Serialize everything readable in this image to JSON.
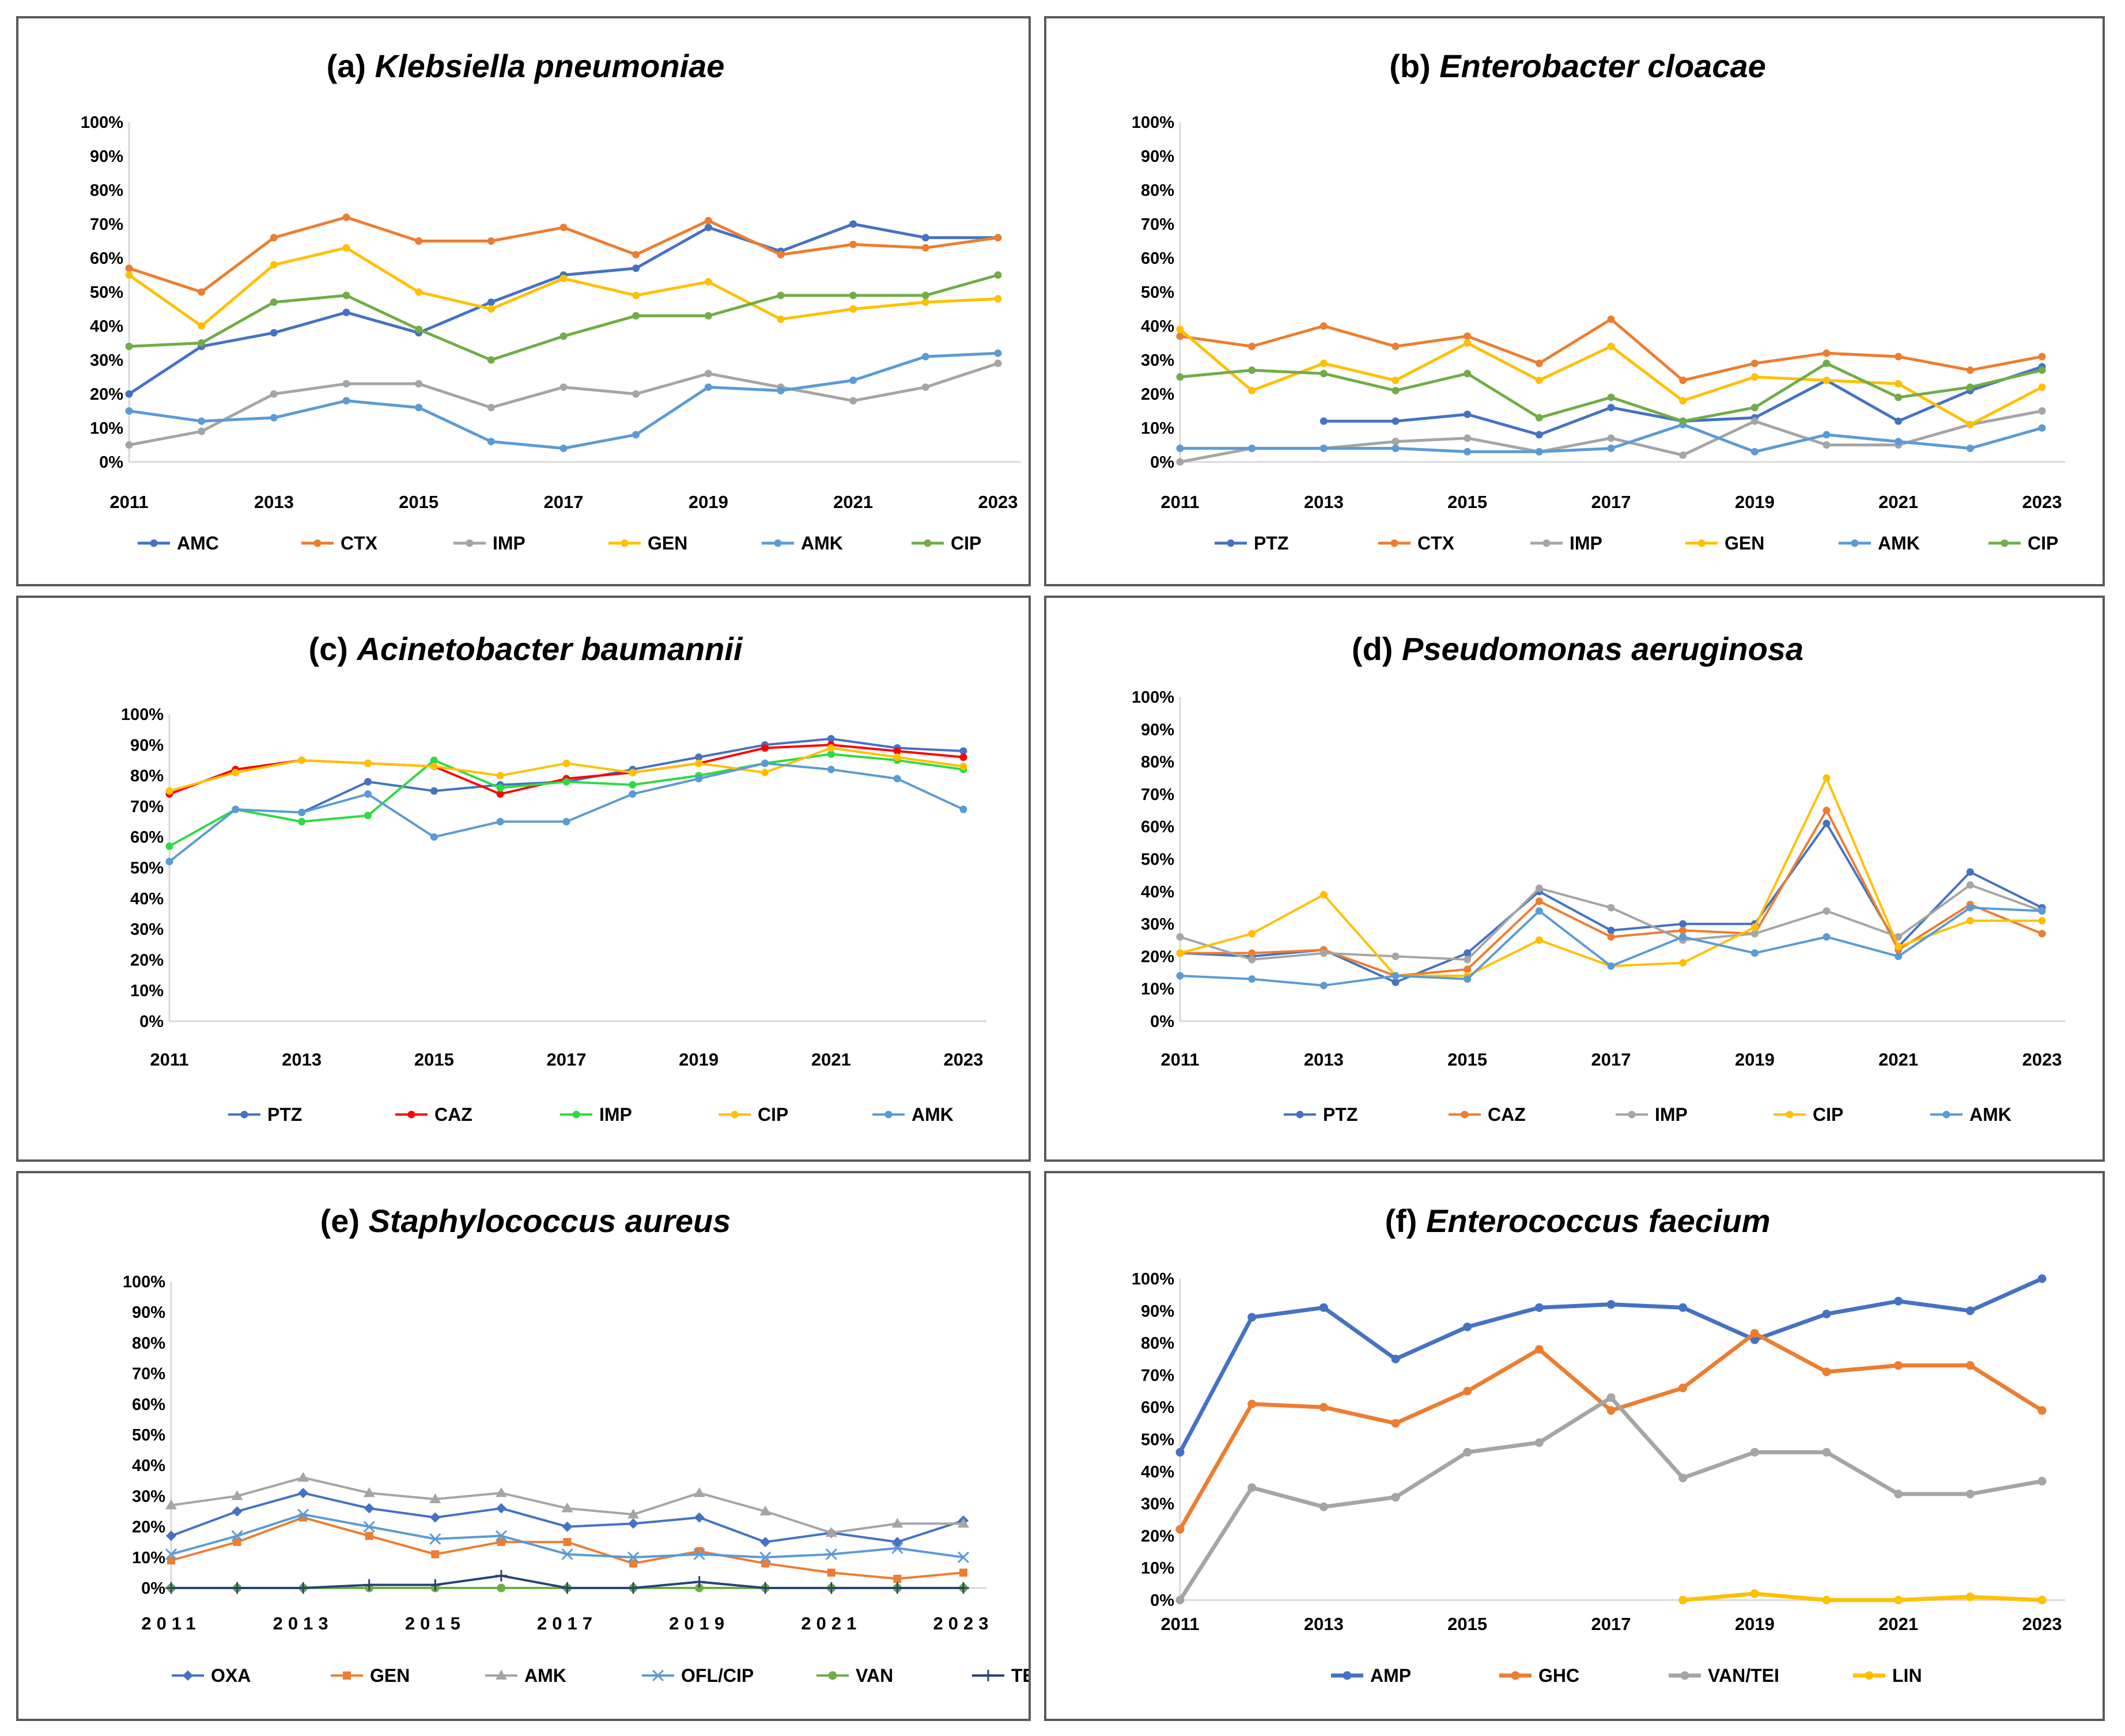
{
  "colors": {
    "blue": "#4472C4",
    "orange": "#ED7D31",
    "gray": "#A5A5A5",
    "gold": "#FFC000",
    "lightblue": "#5B9BD5",
    "green": "#70AD47",
    "red": "#FF0000",
    "brightgreen": "#2CDB41",
    "navy": "#264478",
    "axis": "#D9D9D9",
    "border": "#595959"
  },
  "chart_data": [
    {
      "type": "line",
      "title_prefix": "(a) ",
      "title_species": "Klebsiella pneumoniae",
      "x": [
        2011,
        2012,
        2013,
        2014,
        2015,
        2016,
        2017,
        2018,
        2019,
        2020,
        2021,
        2022,
        2023
      ],
      "x_tick_labels": [
        "2011",
        "2013",
        "2015",
        "2017",
        "2019",
        "2021",
        "2023"
      ],
      "y_tick_labels": [
        "0%",
        "10%",
        "20%",
        "30%",
        "40%",
        "50%",
        "60%",
        "70%",
        "80%",
        "90%",
        "100%"
      ],
      "ylim": [
        0,
        100
      ],
      "series": [
        {
          "name": "AMC",
          "color": "#4472C4",
          "marker": "circle",
          "values": [
            20,
            34,
            38,
            44,
            38,
            47,
            55,
            57,
            69,
            62,
            70,
            66,
            66
          ]
        },
        {
          "name": "CTX",
          "color": "#ED7D31",
          "marker": "circle",
          "values": [
            57,
            50,
            66,
            72,
            65,
            65,
            69,
            61,
            71,
            61,
            64,
            63,
            66
          ]
        },
        {
          "name": "IMP",
          "color": "#A5A5A5",
          "marker": "circle",
          "values": [
            5,
            9,
            20,
            23,
            23,
            16,
            22,
            20,
            26,
            22,
            18,
            22,
            29
          ]
        },
        {
          "name": "GEN",
          "color": "#FFC000",
          "marker": "circle",
          "values": [
            55,
            40,
            58,
            63,
            50,
            45,
            54,
            49,
            53,
            42,
            45,
            47,
            48
          ]
        },
        {
          "name": "AMK",
          "color": "#5B9BD5",
          "marker": "circle",
          "values": [
            15,
            12,
            13,
            18,
            16,
            6,
            4,
            8,
            22,
            21,
            24,
            31,
            32
          ]
        },
        {
          "name": "CIP",
          "color": "#70AD47",
          "marker": "circle",
          "values": [
            34,
            35,
            47,
            49,
            39,
            30,
            37,
            43,
            43,
            49,
            49,
            49,
            55
          ]
        }
      ]
    },
    {
      "type": "line",
      "title_prefix": "(b) ",
      "title_species": "Enterobacter cloacae",
      "x": [
        2011,
        2012,
        2013,
        2014,
        2015,
        2016,
        2017,
        2018,
        2019,
        2020,
        2021,
        2022,
        2023
      ],
      "x_tick_labels": [
        "2011",
        "2013",
        "2015",
        "2017",
        "2019",
        "2021",
        "2023"
      ],
      "y_tick_labels": [
        "0%",
        "10%",
        "20%",
        "30%",
        "40%",
        "50%",
        "60%",
        "70%",
        "80%",
        "90%",
        "100%"
      ],
      "ylim": [
        0,
        100
      ],
      "series": [
        {
          "name": "PTZ",
          "color": "#4472C4",
          "marker": "circle",
          "values": [
            null,
            null,
            12,
            12,
            14,
            8,
            16,
            12,
            13,
            24,
            12,
            21,
            28
          ]
        },
        {
          "name": "CTX",
          "color": "#ED7D31",
          "marker": "circle",
          "values": [
            37,
            34,
            40,
            34,
            37,
            29,
            42,
            24,
            29,
            32,
            31,
            27,
            31
          ]
        },
        {
          "name": "IMP",
          "color": "#A5A5A5",
          "marker": "circle",
          "values": [
            0,
            4,
            4,
            6,
            7,
            3,
            7,
            2,
            12,
            5,
            5,
            11,
            15
          ]
        },
        {
          "name": "GEN",
          "color": "#FFC000",
          "marker": "circle",
          "values": [
            39,
            21,
            29,
            24,
            35,
            24,
            34,
            18,
            25,
            24,
            23,
            11,
            22
          ]
        },
        {
          "name": "AMK",
          "color": "#5B9BD5",
          "marker": "circle",
          "values": [
            4,
            4,
            4,
            4,
            3,
            3,
            4,
            11,
            3,
            8,
            6,
            4,
            10
          ]
        },
        {
          "name": "CIP",
          "color": "#70AD47",
          "marker": "circle",
          "values": [
            25,
            27,
            26,
            21,
            26,
            13,
            19,
            12,
            16,
            29,
            19,
            22,
            27
          ]
        }
      ]
    },
    {
      "type": "line",
      "title_prefix": "(c) ",
      "title_species": "Acinetobacter baumannii",
      "x": [
        2011,
        2012,
        2013,
        2014,
        2015,
        2016,
        2017,
        2018,
        2019,
        2020,
        2021,
        2022,
        2023
      ],
      "x_tick_labels": [
        "2011",
        "2013",
        "2015",
        "2017",
        "2019",
        "2021",
        "2023"
      ],
      "y_tick_labels": [
        "0%",
        "10%",
        "20%",
        "30%",
        "40%",
        "50%",
        "60%",
        "70%",
        "80%",
        "90%",
        "100%"
      ],
      "ylim": [
        0,
        100
      ],
      "series": [
        {
          "name": "PTZ",
          "color": "#4472C4",
          "marker": "circle",
          "values": [
            null,
            null,
            68,
            78,
            75,
            77,
            78,
            82,
            86,
            90,
            92,
            89,
            88
          ]
        },
        {
          "name": "CAZ",
          "color": "#FF0000",
          "marker": "circle",
          "values": [
            74,
            82,
            85,
            84,
            83,
            74,
            79,
            81,
            84,
            89,
            90,
            88,
            86
          ]
        },
        {
          "name": "IMP",
          "color": "#2CDB41",
          "marker": "circle",
          "values": [
            57,
            69,
            65,
            67,
            85,
            76,
            78,
            77,
            80,
            84,
            87,
            85,
            82
          ]
        },
        {
          "name": "CIP",
          "color": "#FFC000",
          "marker": "circle",
          "values": [
            75,
            81,
            85,
            84,
            83,
            80,
            84,
            81,
            84,
            81,
            89,
            86,
            83
          ]
        },
        {
          "name": "AMK",
          "color": "#5B9BD5",
          "marker": "circle",
          "values": [
            52,
            69,
            68,
            74,
            60,
            65,
            65,
            74,
            79,
            84,
            82,
            79,
            69
          ]
        }
      ]
    },
    {
      "type": "line",
      "title_prefix": "(d) ",
      "title_species": "Pseudomonas aeruginosa",
      "x": [
        2011,
        2012,
        2013,
        2014,
        2015,
        2016,
        2017,
        2018,
        2019,
        2020,
        2021,
        2022,
        2023
      ],
      "x_tick_labels": [
        "2011",
        "2013",
        "2015",
        "2017",
        "2019",
        "2021",
        "2023"
      ],
      "y_tick_labels": [
        "0%",
        "10%",
        "20%",
        "30%",
        "40%",
        "50%",
        "60%",
        "70%",
        "80%",
        "90%",
        "100%"
      ],
      "ylim": [
        0,
        100
      ],
      "series": [
        {
          "name": "PTZ",
          "color": "#4472C4",
          "marker": "circle",
          "values": [
            21,
            20,
            22,
            12,
            21,
            40,
            28,
            30,
            30,
            61,
            23,
            46,
            35
          ]
        },
        {
          "name": "CAZ",
          "color": "#ED7D31",
          "marker": "circle",
          "values": [
            21,
            21,
            22,
            14,
            16,
            37,
            26,
            28,
            27,
            65,
            22,
            36,
            27
          ]
        },
        {
          "name": "IMP",
          "color": "#A5A5A5",
          "marker": "circle",
          "values": [
            26,
            19,
            21,
            20,
            19,
            41,
            35,
            25,
            27,
            34,
            26,
            42,
            34
          ]
        },
        {
          "name": "CIP",
          "color": "#FFC000",
          "marker": "circle",
          "values": [
            21,
            27,
            39,
            14,
            14,
            25,
            17,
            18,
            29,
            75,
            23,
            31,
            31
          ]
        },
        {
          "name": "AMK",
          "color": "#5B9BD5",
          "marker": "circle",
          "values": [
            14,
            13,
            11,
            14,
            13,
            34,
            17,
            26,
            21,
            26,
            20,
            35,
            34
          ]
        }
      ]
    },
    {
      "type": "line",
      "title_prefix": "(e) ",
      "title_species": "Staphylococcus aureus",
      "x": [
        2011,
        2012,
        2013,
        2014,
        2015,
        2016,
        2017,
        2018,
        2019,
        2020,
        2021,
        2022,
        2023
      ],
      "x_tick_labels": [
        "2011",
        "2013",
        "2015",
        "2017",
        "2019",
        "2021",
        "2023"
      ],
      "y_tick_labels": [
        "0%",
        "10%",
        "20%",
        "30%",
        "40%",
        "50%",
        "60%",
        "70%",
        "80%",
        "90%",
        "100%"
      ],
      "ylim": [
        0,
        100
      ],
      "series": [
        {
          "name": "OXA",
          "color": "#4472C4",
          "marker": "diamond",
          "values": [
            17,
            25,
            31,
            26,
            23,
            26,
            20,
            21,
            23,
            15,
            18,
            15,
            22
          ]
        },
        {
          "name": "GEN",
          "color": "#ED7D31",
          "marker": "square",
          "values": [
            9,
            15,
            23,
            17,
            11,
            15,
            15,
            8,
            12,
            8,
            5,
            3,
            5
          ]
        },
        {
          "name": "AMK",
          "color": "#A5A5A5",
          "marker": "triangle",
          "values": [
            27,
            30,
            36,
            31,
            29,
            31,
            26,
            24,
            31,
            25,
            18,
            21,
            21
          ]
        },
        {
          "name": "OFL/CIP",
          "color": "#5B9BD5",
          "marker": "x",
          "values": [
            11,
            17,
            24,
            20,
            16,
            17,
            11,
            10,
            11,
            10,
            11,
            13,
            10
          ]
        },
        {
          "name": "VAN",
          "color": "#70AD47",
          "marker": "circle",
          "values": [
            0,
            0,
            0,
            0,
            0,
            0,
            0,
            0,
            0,
            0,
            0,
            0,
            0
          ]
        },
        {
          "name": "TEI",
          "color": "#264478",
          "marker": "plus",
          "values": [
            0,
            0,
            0,
            1,
            1,
            4,
            0,
            0,
            2,
            0,
            0,
            0,
            0
          ]
        }
      ]
    },
    {
      "type": "line",
      "title_prefix": "(f) ",
      "title_species": "Enterococcus faecium",
      "x": [
        2011,
        2012,
        2013,
        2014,
        2015,
        2016,
        2017,
        2018,
        2019,
        2020,
        2021,
        2022,
        2023
      ],
      "x_tick_labels": [
        "2011",
        "2013",
        "2015",
        "2017",
        "2019",
        "2021",
        "2023"
      ],
      "y_tick_labels": [
        "0%",
        "10%",
        "20%",
        "30%",
        "40%",
        "50%",
        "60%",
        "70%",
        "80%",
        "90%",
        "100%"
      ],
      "ylim": [
        0,
        100
      ],
      "series": [
        {
          "name": "AMP",
          "color": "#4472C4",
          "marker": "circle",
          "values": [
            46,
            88,
            91,
            75,
            85,
            91,
            92,
            91,
            81,
            89,
            93,
            90,
            100
          ]
        },
        {
          "name": "GHC",
          "color": "#ED7D31",
          "marker": "circle",
          "values": [
            22,
            61,
            60,
            55,
            65,
            78,
            59,
            66,
            83,
            71,
            73,
            73,
            59
          ]
        },
        {
          "name": "VAN/TEI",
          "color": "#A5A5A5",
          "marker": "circle",
          "values": [
            0,
            35,
            29,
            32,
            46,
            49,
            63,
            38,
            46,
            46,
            33,
            33,
            37
          ]
        },
        {
          "name": "LIN",
          "color": "#FFC000",
          "marker": "circle",
          "values": [
            null,
            null,
            null,
            null,
            null,
            null,
            null,
            0,
            2,
            0,
            0,
            1,
            0
          ]
        }
      ]
    }
  ]
}
